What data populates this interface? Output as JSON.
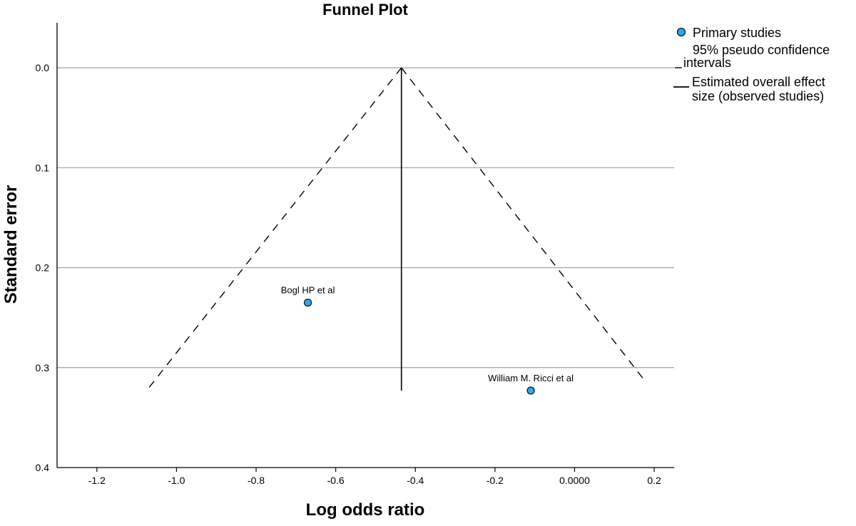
{
  "chart_data": {
    "type": "scatter",
    "title": "Funnel Plot",
    "xlabel": "Log odds ratio",
    "ylabel": "Standard error",
    "xlim": [
      -1.3,
      0.25
    ],
    "ylim": [
      0.0,
      0.4
    ],
    "y_inverted": true,
    "y_range_shown": [
      -0.045,
      0.4
    ],
    "x_ticks": [
      -1.2,
      -1.0,
      -0.8,
      -0.6,
      -0.4,
      -0.2,
      0.0,
      0.2
    ],
    "x_tick_labels": [
      "-1.2",
      "-1.0",
      "-0.8",
      "-0.6",
      "-0.4",
      "-0.2",
      "0.0000",
      "0.2"
    ],
    "y_ticks": [
      0.0,
      0.1,
      0.2,
      0.3,
      0.4
    ],
    "y_tick_labels": [
      "0.0",
      "0.1",
      "0.2",
      "0.3",
      "0.4"
    ],
    "grid": "horizontal",
    "legend_position": "right",
    "legend": [
      {
        "label": "Primary studies",
        "symbol": "circle"
      },
      {
        "label": "95% pseudo confidence intervals",
        "symbol": "dashed-line"
      },
      {
        "label": "Estimated overall effect size (observed studies)",
        "symbol": "solid-line"
      }
    ],
    "points": [
      {
        "label": "Bogl HP et al",
        "x": -0.67,
        "y": 0.235
      },
      {
        "label": "William M. Ricci et al",
        "x": -0.11,
        "y": 0.323
      }
    ],
    "overall_effect": {
      "x": -0.435,
      "y_from": 0.0,
      "y_to": 0.323
    },
    "confidence_lines": [
      {
        "x1": -0.435,
        "y1": 0.0,
        "x2": -1.075,
        "y2": 0.323
      },
      {
        "x1": -0.435,
        "y1": 0.0,
        "x2": 0.18,
        "y2": 0.315
      }
    ],
    "colors": {
      "point_fill": "#29a9ef",
      "point_stroke": "#1a1a1a",
      "grid": "#a0a0a0",
      "axis": "#000000"
    }
  }
}
